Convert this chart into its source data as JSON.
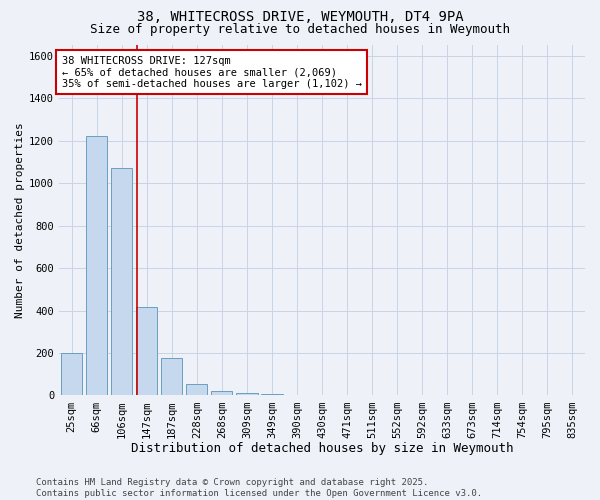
{
  "title1": "38, WHITECROSS DRIVE, WEYMOUTH, DT4 9PA",
  "title2": "Size of property relative to detached houses in Weymouth",
  "xlabel": "Distribution of detached houses by size in Weymouth",
  "ylabel": "Number of detached properties",
  "categories": [
    "25sqm",
    "66sqm",
    "106sqm",
    "147sqm",
    "187sqm",
    "228sqm",
    "268sqm",
    "309sqm",
    "349sqm",
    "390sqm",
    "430sqm",
    "471sqm",
    "511sqm",
    "552sqm",
    "592sqm",
    "633sqm",
    "673sqm",
    "714sqm",
    "754sqm",
    "795sqm",
    "835sqm"
  ],
  "values": [
    200,
    1220,
    1070,
    415,
    175,
    55,
    20,
    12,
    5,
    2,
    0,
    0,
    0,
    0,
    0,
    0,
    0,
    0,
    0,
    0,
    0
  ],
  "bar_color": "#c5d8ee",
  "bar_edge_color": "#6a9fc0",
  "red_line_x": 2.62,
  "annotation_text": "38 WHITECROSS DRIVE: 127sqm\n← 65% of detached houses are smaller (2,069)\n35% of semi-detached houses are larger (1,102) →",
  "annotation_box_color": "#ffffff",
  "annotation_box_edge": "#cc0000",
  "ylim": [
    0,
    1650
  ],
  "yticks": [
    0,
    200,
    400,
    600,
    800,
    1000,
    1200,
    1400,
    1600
  ],
  "grid_color": "#c8d4e4",
  "background_color": "#eef2f8",
  "footer": "Contains HM Land Registry data © Crown copyright and database right 2025.\nContains public sector information licensed under the Open Government Licence v3.0.",
  "title1_fontsize": 10,
  "title2_fontsize": 9,
  "xlabel_fontsize": 9,
  "ylabel_fontsize": 8,
  "annotation_fontsize": 7.5,
  "footer_fontsize": 6.5,
  "tick_fontsize": 7.5
}
